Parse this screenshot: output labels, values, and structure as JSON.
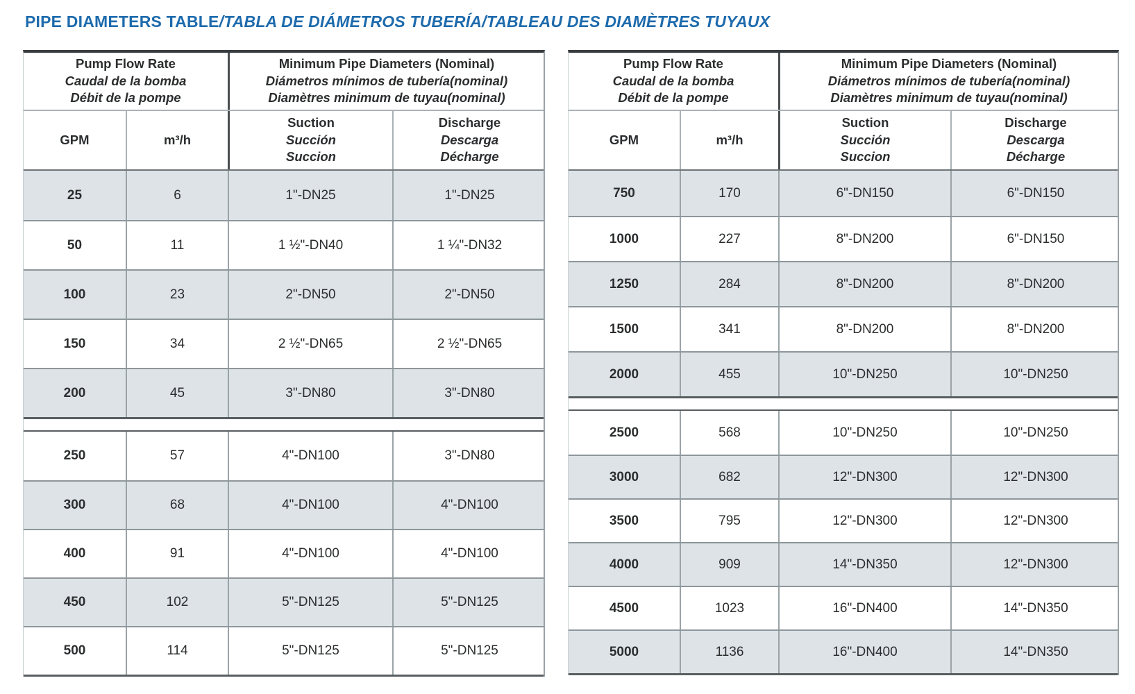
{
  "title": {
    "main": "PIPE DIAMETERS TABLE",
    "alt": "/TABLA DE DIÁMETROS TUBERÍA/TABLEAU DES DIAMÈTRES TUYAUX"
  },
  "colors": {
    "title_blue": "#1e6bad",
    "row_shade": "#dde3e7",
    "border_dark": "#3a3d3f",
    "border_mid": "#8e979b",
    "text": "#2b2d2e"
  },
  "columns_header": {
    "flow": [
      "Pump Flow Rate",
      "Caudal de la bomba",
      "Débit de la pompe"
    ],
    "diameters": [
      "Minimum Pipe Diameters (Nominal)",
      "Diámetros mínimos de tubería(nominal)",
      "Diamètres minimum de tuyau(nominal)"
    ],
    "gpm": "GPM",
    "m3h": "m³/h",
    "suction": [
      "Suction",
      "Succión",
      "Succion"
    ],
    "discharge": [
      "Discharge",
      "Descarga",
      "Décharge"
    ]
  },
  "left_table": {
    "section1": {
      "rows": [
        [
          "25",
          "6",
          "1\"-DN25",
          "1\"-DN25"
        ],
        [
          "50",
          "11",
          "1 ½\"-DN40",
          "1 ¼\"-DN32"
        ],
        [
          "100",
          "23",
          "2\"-DN50",
          "2\"-DN50"
        ],
        [
          "150",
          "34",
          "2 ½\"-DN65",
          "2 ½\"-DN65"
        ],
        [
          "200",
          "45",
          "3\"-DN80",
          "3\"-DN80"
        ]
      ]
    },
    "section2": {
      "rows": [
        [
          "250",
          "57",
          "4\"-DN100",
          "3\"-DN80"
        ],
        [
          "300",
          "68",
          "4\"-DN100",
          "4\"-DN100"
        ],
        [
          "400",
          "91",
          "4\"-DN100",
          "4\"-DN100"
        ],
        [
          "450",
          "102",
          "5\"-DN125",
          "5\"-DN125"
        ],
        [
          "500",
          "114",
          "5\"-DN125",
          "5\"-DN125"
        ]
      ]
    }
  },
  "right_table": {
    "section1": {
      "rows": [
        [
          "750",
          "170",
          "6\"-DN150",
          "6\"-DN150"
        ],
        [
          "1000",
          "227",
          "8\"-DN200",
          "6\"-DN150"
        ],
        [
          "1250",
          "284",
          "8\"-DN200",
          "8\"-DN200"
        ],
        [
          "1500",
          "341",
          "8\"-DN200",
          "8\"-DN200"
        ],
        [
          "2000",
          "455",
          "10\"-DN250",
          "10\"-DN250"
        ]
      ]
    },
    "section2": {
      "rows": [
        [
          "2500",
          "568",
          "10\"-DN250",
          "10\"-DN250"
        ],
        [
          "3000",
          "682",
          "12\"-DN300",
          "12\"-DN300"
        ],
        [
          "3500",
          "795",
          "12\"-DN300",
          "12\"-DN300"
        ],
        [
          "4000",
          "909",
          "14\"-DN350",
          "12\"-DN300"
        ],
        [
          "4500",
          "1023",
          "16\"-DN400",
          "14\"-DN350"
        ],
        [
          "5000",
          "1136",
          "16\"-DN400",
          "14\"-DN350"
        ]
      ]
    }
  }
}
